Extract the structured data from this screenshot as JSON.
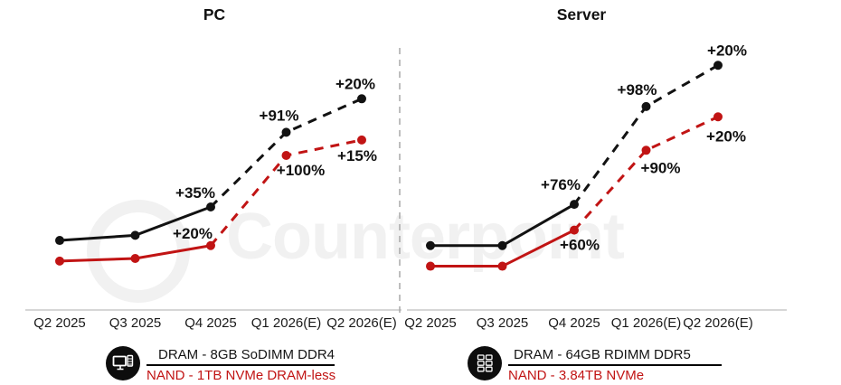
{
  "watermark": {
    "text": "Counterpoint"
  },
  "chart_data": [
    {
      "type": "line",
      "title": "PC",
      "categories": [
        "Q2 2025",
        "Q3 2025",
        "Q4 2025",
        "Q1 2026(E)",
        "Q2 2026(E)"
      ],
      "estimate_dashed_from_index": 2,
      "xlabel": "",
      "ylabel": "",
      "grid": false,
      "legend": {
        "icon": "pc-icon",
        "dram_label": "DRAM - 8GB SoDIMM DDR4",
        "nand_label": "NAND - 1TB NVMe DRAM-less"
      },
      "series": [
        {
          "name": "DRAM - 8GB SoDIMM DDR4",
          "color": "#121212",
          "visual_levels": [
            27,
            29,
            40,
            69,
            82
          ],
          "qoq_labels": [
            {
              "index": 2,
              "text": "+35%",
              "dx": -17,
              "dy": -10
            },
            {
              "index": 3,
              "text": "+91%",
              "dx": -8,
              "dy": -13
            },
            {
              "index": 4,
              "text": "+20%",
              "dx": -7,
              "dy": -11
            }
          ]
        },
        {
          "name": "NAND - 1TB NVMe DRAM-less",
          "color": "#c11414",
          "visual_levels": [
            19,
            20,
            25,
            60,
            66
          ],
          "qoq_labels": [
            {
              "index": 2,
              "text": "+20%",
              "dx": -20,
              "dy": -8
            },
            {
              "index": 3,
              "text": "+100%",
              "dx": 16,
              "dy": 22
            },
            {
              "index": 4,
              "text": "+15%",
              "dx": -5,
              "dy": 23
            }
          ]
        }
      ]
    },
    {
      "type": "line",
      "title": "Server",
      "categories": [
        "Q2 2025",
        "Q3 2025",
        "Q4 2025",
        "Q1 2026(E)",
        "Q2 2026(E)"
      ],
      "estimate_dashed_from_index": 2,
      "xlabel": "",
      "ylabel": "",
      "grid": false,
      "legend": {
        "icon": "server-icon",
        "dram_label": "DRAM - 64GB RDIMM DDR5",
        "nand_label": "NAND - 3.84TB NVMe"
      },
      "series": [
        {
          "name": "DRAM - 64GB RDIMM DDR5",
          "color": "#121212",
          "visual_levels": [
            25,
            25,
            41,
            79,
            95
          ],
          "qoq_labels": [
            {
              "index": 2,
              "text": "+76%",
              "dx": -15,
              "dy": -16
            },
            {
              "index": 3,
              "text": "+98%",
              "dx": -10,
              "dy": -13
            },
            {
              "index": 4,
              "text": "+20%",
              "dx": 10,
              "dy": -11
            }
          ]
        },
        {
          "name": "NAND - 3.84TB NVMe",
          "color": "#c11414",
          "visual_levels": [
            17,
            17,
            31,
            62,
            75
          ],
          "qoq_labels": [
            {
              "index": 2,
              "text": "+60%",
              "dx": 6,
              "dy": 22
            },
            {
              "index": 3,
              "text": "+90%",
              "dx": 16,
              "dy": 25
            },
            {
              "index": 4,
              "text": "+20%",
              "dx": 9,
              "dy": 27
            }
          ]
        }
      ]
    }
  ]
}
